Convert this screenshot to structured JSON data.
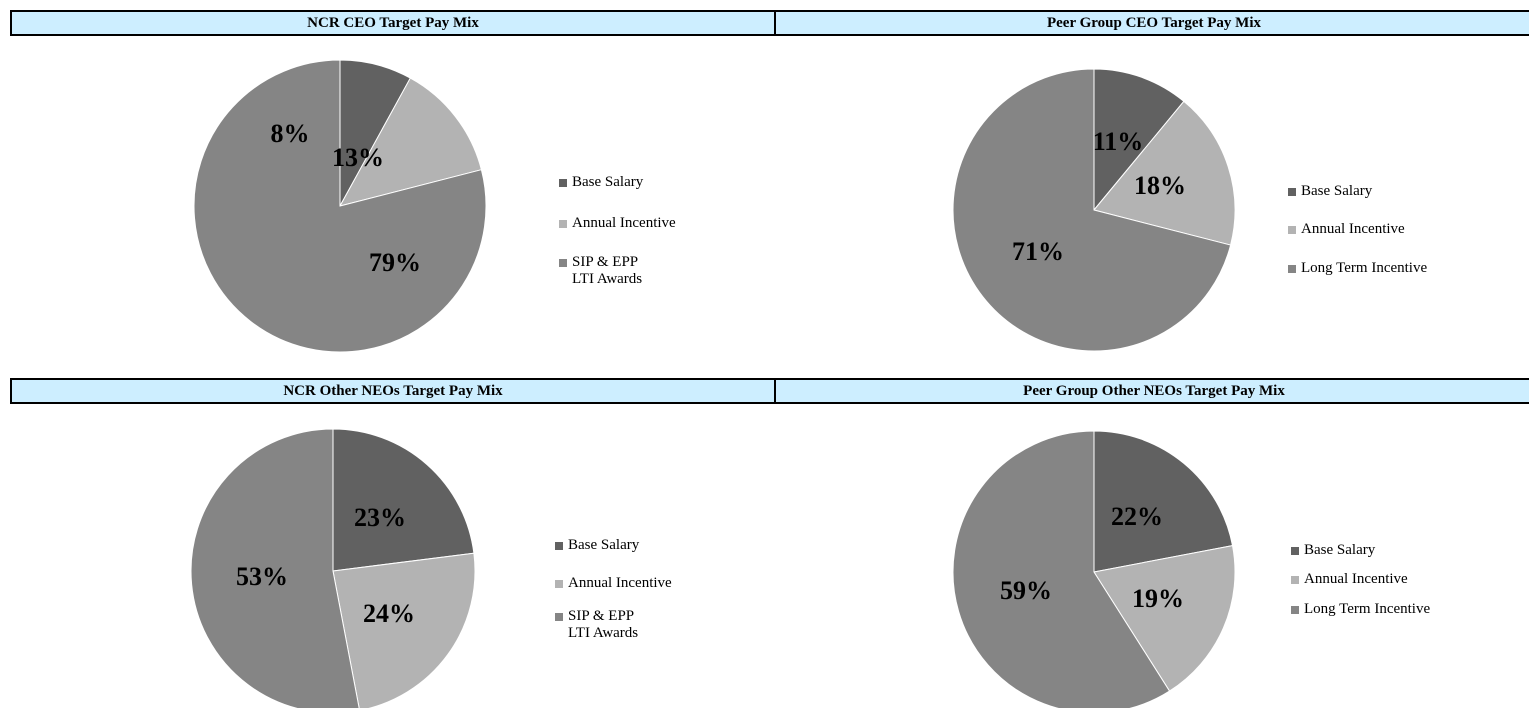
{
  "colors": {
    "base": "#616161",
    "annual": "#b3b3b3",
    "lti": "#858585",
    "header_bg": "#cdeeff"
  },
  "chart_data": [
    {
      "type": "pie",
      "title": "NCR CEO Target Pay Mix",
      "categories": [
        "Base Salary",
        "Annual Incentive",
        "SIP & EPP\nLTI Awards"
      ],
      "values": [
        8,
        13,
        79
      ],
      "labels": [
        "8%",
        "13%",
        "79%"
      ],
      "legend": "right"
    },
    {
      "type": "pie",
      "title": "Peer Group CEO Target Pay Mix",
      "categories": [
        "Base Salary",
        "Annual Incentive",
        "Long Term Incentive"
      ],
      "values": [
        11,
        18,
        71
      ],
      "labels": [
        "11%",
        "18%",
        "71%"
      ],
      "legend": "right"
    },
    {
      "type": "pie",
      "title": "NCR Other NEOs Target Pay Mix",
      "categories": [
        "Base Salary",
        "Annual Incentive",
        "SIP & EPP\nLTI Awards"
      ],
      "values": [
        23,
        24,
        53
      ],
      "labels": [
        "23%",
        "24%",
        "53%"
      ],
      "legend": "right"
    },
    {
      "type": "pie",
      "title": "Peer Group Other NEOs Target Pay Mix",
      "categories": [
        "Base Salary",
        "Annual Incentive",
        "Long Term Incentive"
      ],
      "values": [
        22,
        19,
        59
      ],
      "labels": [
        "22%",
        "19%",
        "59%"
      ],
      "legend": "right"
    }
  ]
}
